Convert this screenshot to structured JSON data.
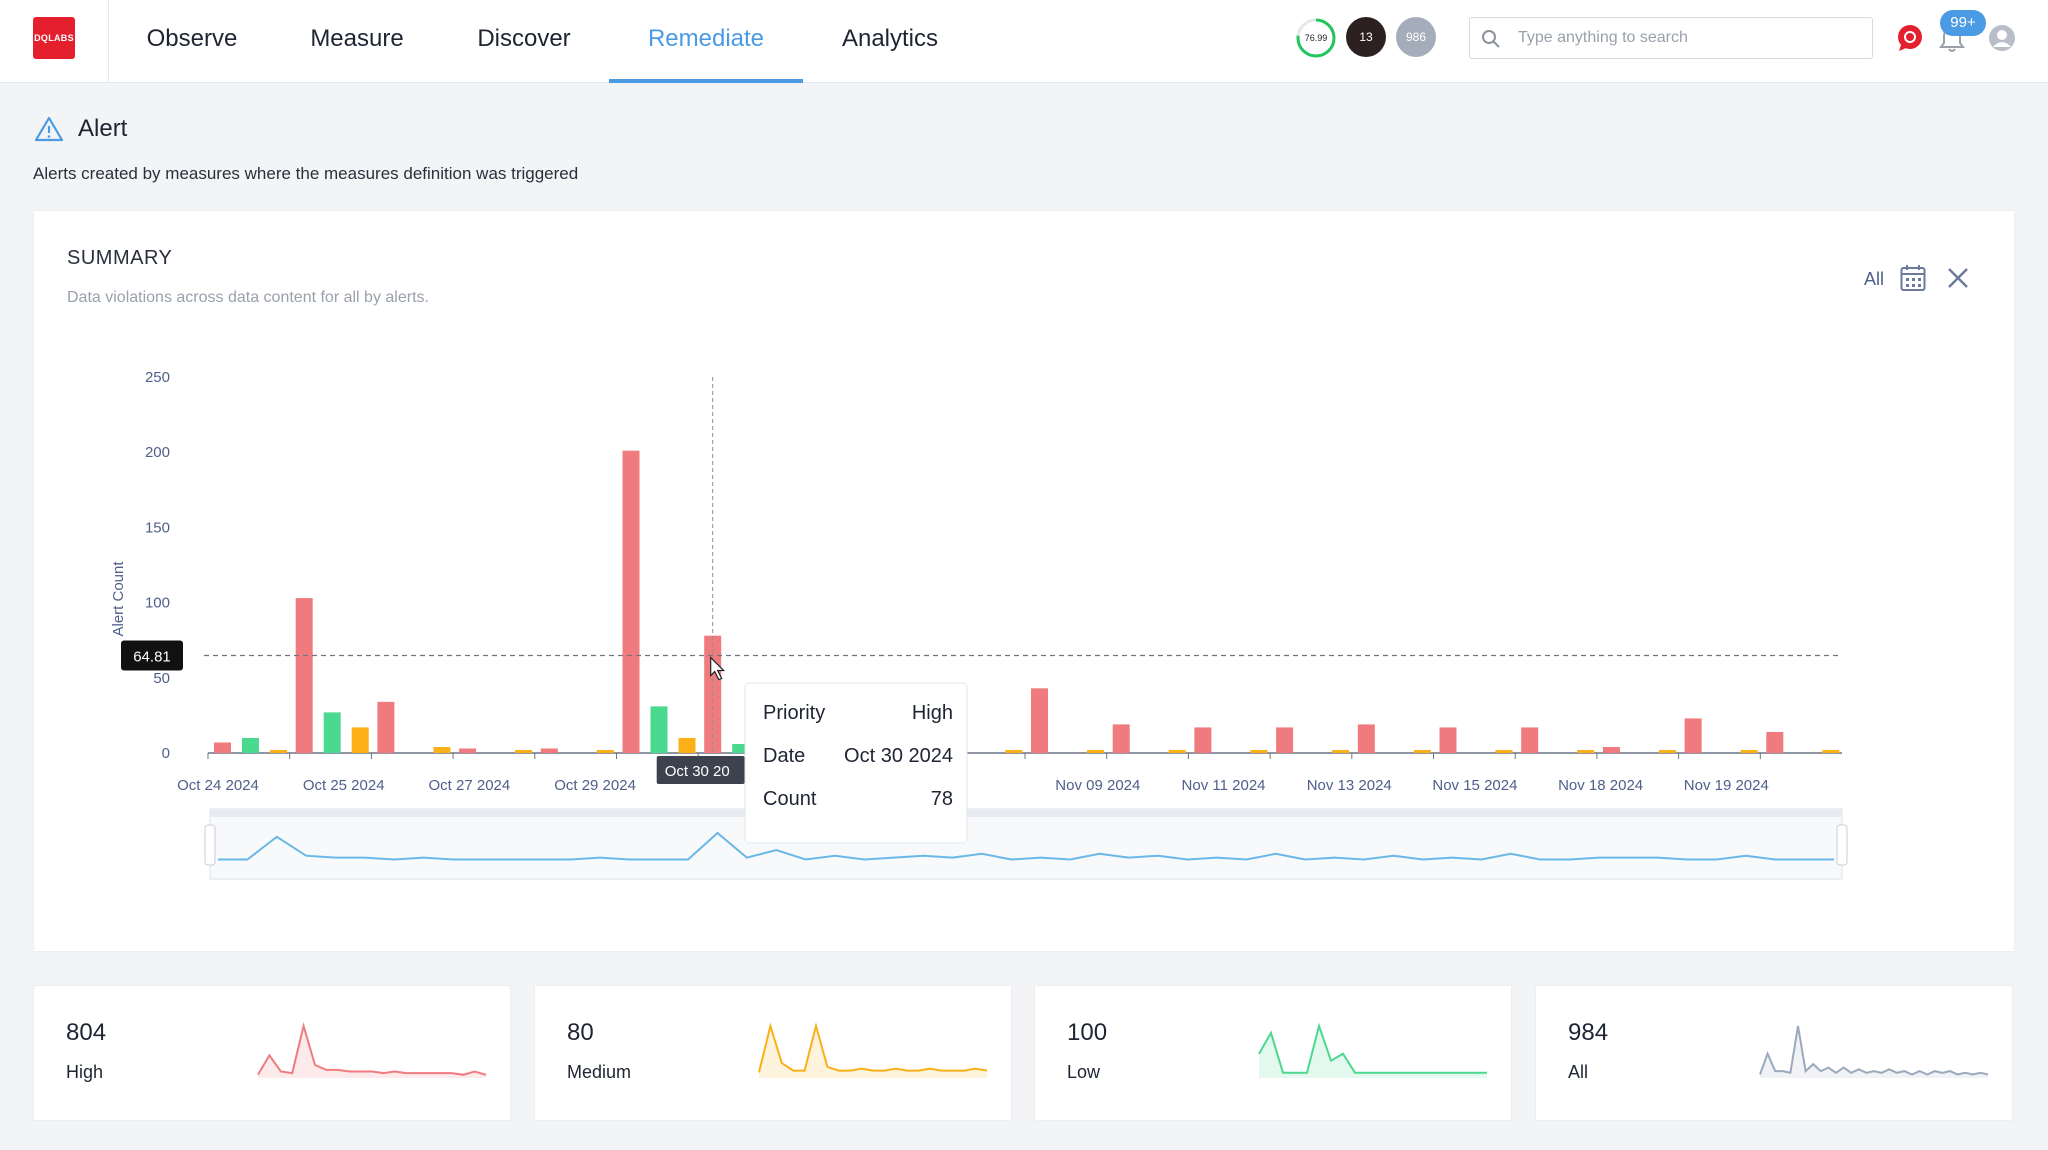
{
  "nav": {
    "logo_text": "DQLABS",
    "items": [
      {
        "label": "Observe",
        "active": false
      },
      {
        "label": "Measure",
        "active": false
      },
      {
        "label": "Discover",
        "active": false
      },
      {
        "label": "Remediate",
        "active": true
      },
      {
        "label": "Analytics",
        "active": false
      }
    ],
    "score": "76.99",
    "score_color": "#22c55e",
    "dark_badge": "13",
    "grey_badge": "986",
    "search_placeholder": "Type anything to search",
    "notifications": "99+",
    "accent": "#4b9be4"
  },
  "page": {
    "title": "Alert",
    "description": "Alerts created by measures where the measures definition was triggered"
  },
  "summary": {
    "title": "SUMMARY",
    "description": "Data violations across data content for all by alerts.",
    "range_label": "All"
  },
  "chart_data": {
    "type": "bar",
    "ylabel": "Alert Count",
    "ylim": [
      0,
      250
    ],
    "yticks": [
      0,
      50,
      100,
      150,
      200,
      250
    ],
    "x_tick_labels": [
      "Oct 24 2024",
      "Oct 25 2024",
      "Oct 27 2024",
      "Oct 29 2024",
      "Oct 30 2024",
      "Nov 09 2024",
      "Nov 11 2024",
      "Nov 13 2024",
      "Nov 15 2024",
      "Nov 18 2024",
      "Nov 19 2024"
    ],
    "visible_x_labels": [
      "Oct 24 2024",
      "Oct 25 2024",
      "Oct 27 2024",
      "Oct 29 2024",
      "",
      "",
      "",
      "Nov 09 2024",
      "Nov 11 2024",
      "Nov 13 2024",
      "Nov 15 2024",
      "Nov 18 2024",
      "Nov 19 2024"
    ],
    "colors": {
      "High": "#f07b7e",
      "Medium": "#fbb018",
      "Low": "#4ad98e"
    },
    "series": [
      {
        "name": "High",
        "values": [
          7,
          103,
          34,
          3,
          3,
          201,
          78,
          36,
          17,
          17,
          43,
          19,
          17,
          17,
          19,
          17,
          17,
          4,
          23,
          14
        ]
      },
      {
        "name": "Medium",
        "values": [
          2,
          17,
          4,
          2,
          2,
          10,
          2,
          2,
          2,
          2,
          2,
          2,
          2,
          2,
          2,
          2,
          2,
          2,
          2,
          2
        ]
      },
      {
        "name": "Low",
        "values": [
          10,
          27,
          0,
          0,
          0,
          31,
          6,
          0,
          0,
          0,
          0,
          0,
          0,
          0,
          0,
          0,
          0,
          0,
          0,
          0
        ]
      }
    ],
    "average_line": {
      "label": "64.81",
      "value": 64.81
    },
    "navigator": [
      10,
      10,
      34,
      14,
      12,
      12,
      10,
      12,
      10,
      10,
      10,
      10,
      10,
      12,
      10,
      10,
      10,
      38,
      12,
      20,
      10,
      14,
      10,
      12,
      14,
      12,
      16,
      10,
      12,
      10,
      16,
      12,
      14,
      10,
      12,
      10,
      16,
      10,
      12,
      10,
      14,
      10,
      12,
      10,
      16,
      10,
      10,
      12,
      12,
      12,
      10,
      10,
      14,
      10,
      10,
      10
    ],
    "tooltip": {
      "x_label": "Oct 30 2024",
      "rows": [
        {
          "key": "Priority",
          "value": "High"
        },
        {
          "key": "Date",
          "value": "Oct 30 2024"
        },
        {
          "key": "Count",
          "value": "78"
        }
      ]
    }
  },
  "cards": [
    {
      "count": "804",
      "label": "High",
      "color": "#f07b7e",
      "trend": [
        2,
        14,
        4,
        3,
        32,
        8,
        5,
        5,
        4,
        4,
        4,
        3,
        4,
        3,
        3,
        3,
        3,
        3,
        2,
        4,
        2
      ]
    },
    {
      "count": "80",
      "label": "Medium",
      "color": "#fbb018",
      "trend": [
        3,
        28,
        8,
        4,
        4,
        28,
        6,
        4,
        4,
        5,
        4,
        4,
        5,
        4,
        4,
        5,
        4,
        4,
        4,
        5,
        4
      ]
    },
    {
      "count": "100",
      "label": "Low",
      "color": "#4ad98e",
      "trend": [
        14,
        26,
        3,
        3,
        3,
        30,
        10,
        14,
        3,
        3,
        3,
        3,
        3,
        3,
        3,
        3,
        3,
        3,
        3,
        3
      ]
    },
    {
      "count": "984",
      "label": "All",
      "color": "#9aa9bd",
      "trend": [
        2,
        14,
        4,
        4,
        3,
        30,
        4,
        8,
        4,
        6,
        3,
        6,
        3,
        5,
        3,
        4,
        3,
        5,
        3,
        4,
        2,
        4,
        2,
        4,
        3,
        4,
        2,
        3,
        2,
        3,
        2
      ]
    }
  ]
}
